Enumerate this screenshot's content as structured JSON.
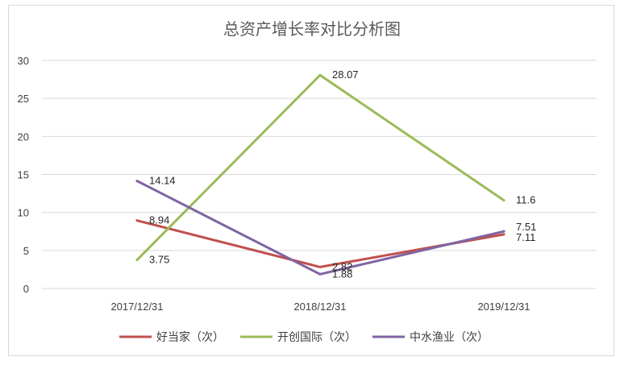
{
  "chart_data": {
    "type": "line",
    "title": "总资产增长率对比分析图",
    "categories": [
      "2017/12/31",
      "2018/12/31",
      "2019/12/31"
    ],
    "ylim": [
      0,
      30
    ],
    "yticks": [
      "0",
      "5",
      "10",
      "15",
      "20",
      "25",
      "30"
    ],
    "ytick_values": [
      0,
      5,
      10,
      15,
      20,
      25,
      30
    ],
    "grid": true,
    "legend_position": "bottom",
    "series": [
      {
        "name": "好当家（次）",
        "color": "#c0504d",
        "values": [
          8.94,
          2.82,
          7.11
        ],
        "labels": [
          "8.94",
          "2.82",
          "7.11"
        ]
      },
      {
        "name": "开创国际（次）",
        "color": "#9bbb59",
        "values": [
          3.75,
          28.07,
          11.6
        ],
        "labels": [
          "3.75",
          "28.07",
          "11.6"
        ]
      },
      {
        "name": "中水渔业（次）",
        "color": "#8064a2",
        "values": [
          14.14,
          1.88,
          7.51
        ],
        "labels": [
          "14.14",
          "1.88",
          "7.51"
        ]
      }
    ]
  }
}
